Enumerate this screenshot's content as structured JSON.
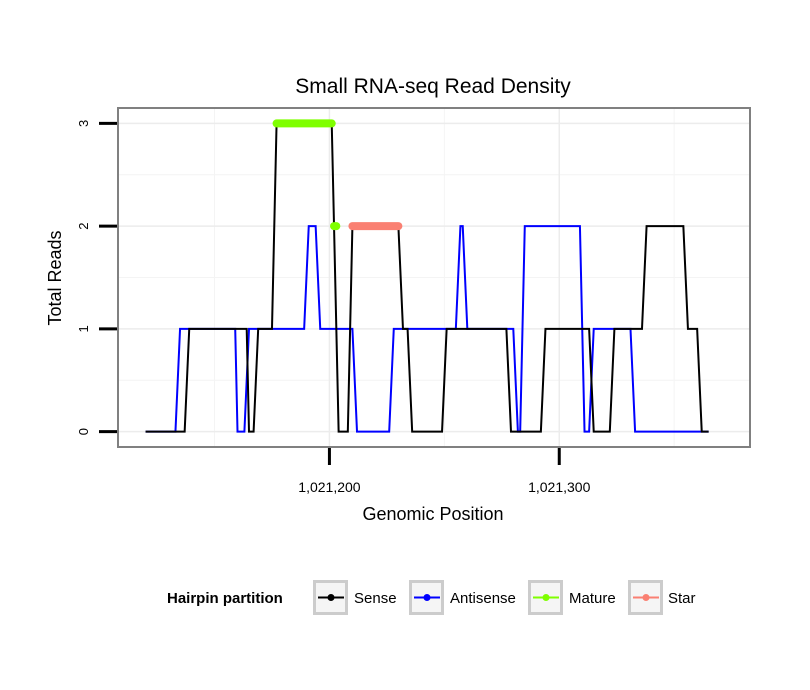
{
  "chart_data": {
    "type": "line",
    "title": "Small RNA-seq Read Density",
    "xlabel": "Genomic Position",
    "ylabel": "Total Reads",
    "xlim": [
      1021108,
      1021383
    ],
    "ylim": [
      -0.15,
      3.15
    ],
    "x_ticks": [
      {
        "value": 1021200,
        "label": "1,021,200"
      },
      {
        "value": 1021300,
        "label": "1,021,300"
      }
    ],
    "y_ticks": [
      {
        "value": 0,
        "label": "0"
      },
      {
        "value": 1,
        "label": "1"
      },
      {
        "value": 2,
        "label": "2"
      },
      {
        "value": 3,
        "label": "3"
      }
    ],
    "series": [
      {
        "name": "Sense",
        "color": "#000000",
        "points": [
          [
            1021120,
            0
          ],
          [
            1021137,
            0
          ],
          [
            1021139,
            1
          ],
          [
            1021164,
            1
          ],
          [
            1021165,
            0
          ],
          [
            1021167,
            0
          ],
          [
            1021169,
            1
          ],
          [
            1021175,
            1
          ],
          [
            1021177,
            3
          ],
          [
            1021201,
            3
          ],
          [
            1021204,
            0
          ],
          [
            1021208,
            0
          ],
          [
            1021210,
            2
          ],
          [
            1021230,
            2
          ],
          [
            1021232,
            1
          ],
          [
            1021234,
            1
          ],
          [
            1021236,
            0
          ],
          [
            1021249,
            0
          ],
          [
            1021251,
            1
          ],
          [
            1021277,
            1
          ],
          [
            1021279,
            0
          ],
          [
            1021292,
            0
          ],
          [
            1021294,
            1
          ],
          [
            1021313,
            1
          ],
          [
            1021315,
            0
          ],
          [
            1021322,
            0
          ],
          [
            1021324,
            1
          ],
          [
            1021336,
            1
          ],
          [
            1021338,
            2
          ],
          [
            1021354,
            2
          ],
          [
            1021356,
            1
          ],
          [
            1021360,
            1
          ],
          [
            1021362,
            0
          ],
          [
            1021365,
            0
          ]
        ]
      },
      {
        "name": "Antisense",
        "color": "#0000ff",
        "points": [
          [
            1021120,
            0
          ],
          [
            1021133,
            0
          ],
          [
            1021135,
            1
          ],
          [
            1021159,
            1
          ],
          [
            1021160,
            0
          ],
          [
            1021163,
            0
          ],
          [
            1021165,
            1
          ],
          [
            1021189,
            1
          ],
          [
            1021191,
            2
          ],
          [
            1021194,
            2
          ],
          [
            1021196,
            1
          ],
          [
            1021210,
            1
          ],
          [
            1021212,
            0
          ],
          [
            1021226,
            0
          ],
          [
            1021228,
            1
          ],
          [
            1021255,
            1
          ],
          [
            1021257,
            2
          ],
          [
            1021258,
            2
          ],
          [
            1021260,
            1
          ],
          [
            1021280,
            1
          ],
          [
            1021282,
            0
          ],
          [
            1021283,
            0
          ],
          [
            1021285,
            2
          ],
          [
            1021309,
            2
          ],
          [
            1021311,
            0
          ],
          [
            1021313,
            0
          ],
          [
            1021315,
            1
          ],
          [
            1021331,
            1
          ],
          [
            1021333,
            0
          ],
          [
            1021365,
            0
          ]
        ]
      },
      {
        "name": "Mature",
        "color": "#7fff00",
        "segments": [
          {
            "x_start": 1021177,
            "x_end": 1021201,
            "y": 3
          },
          {
            "x_start": 1021202,
            "x_end": 1021203,
            "y": 2
          }
        ]
      },
      {
        "name": "Star",
        "color": "#fa8072",
        "segments": [
          {
            "x_start": 1021210,
            "x_end": 1021230,
            "y": 2
          }
        ]
      }
    ],
    "legend": {
      "title": "Hairpin partition",
      "position": "bottom",
      "entries": [
        {
          "label": "Sense",
          "color": "#000000"
        },
        {
          "label": "Antisense",
          "color": "#0000ff"
        },
        {
          "label": "Mature",
          "color": "#7fff00"
        },
        {
          "label": "Star",
          "color": "#fa8072"
        }
      ]
    },
    "grid": true
  }
}
